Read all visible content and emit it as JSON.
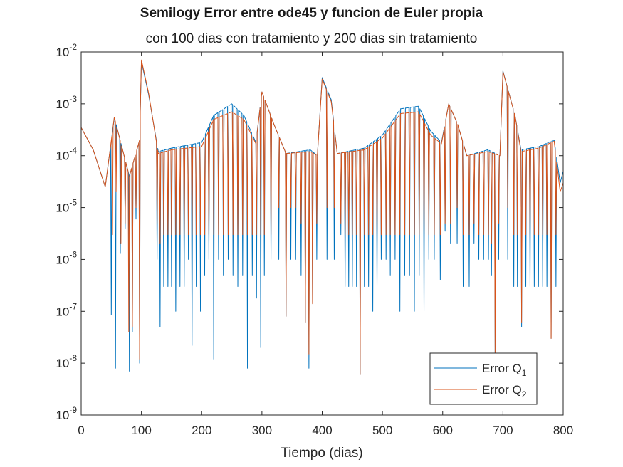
{
  "chart_data": {
    "type": "line",
    "title": "Semilogy Error entre ode45 y funcion de Euler propia",
    "subtitle": "con 100 dias con tratamiento y 200 dias sin tratamiento",
    "xlabel": "Tiempo (dias)",
    "ylabel": "",
    "yscale": "log",
    "xlim": [
      0,
      800
    ],
    "ylim": [
      1e-09,
      0.01
    ],
    "x_ticks": [
      "0",
      "100",
      "200",
      "300",
      "400",
      "500",
      "600",
      "700",
      "800"
    ],
    "y_ticks": [
      {
        "base": "10",
        "exp": "-9"
      },
      {
        "base": "10",
        "exp": "-8"
      },
      {
        "base": "10",
        "exp": "-7"
      },
      {
        "base": "10",
        "exp": "-6"
      },
      {
        "base": "10",
        "exp": "-5"
      },
      {
        "base": "10",
        "exp": "-4"
      },
      {
        "base": "10",
        "exp": "-3"
      },
      {
        "base": "10",
        "exp": "-2"
      }
    ],
    "grid": false,
    "legend_position": "bottom-right",
    "series": [
      {
        "name_base": "Error Q",
        "name_sub": "1",
        "color": "#0072BD",
        "envelope": [
          [
            0,
            0.00035
          ],
          [
            20,
            0.00013
          ],
          [
            40,
            2.5e-05
          ],
          [
            55,
            0.00055
          ],
          [
            80,
            4e-05
          ],
          [
            97,
            0.0002
          ],
          [
            100,
            0.0065
          ],
          [
            112,
            0.0015
          ],
          [
            128,
            0.00012
          ],
          [
            150,
            0.00014
          ],
          [
            200,
            0.00018
          ],
          [
            220,
            0.0006
          ],
          [
            250,
            0.001
          ],
          [
            270,
            0.0006
          ],
          [
            290,
            0.00018
          ],
          [
            300,
            0.0017
          ],
          [
            320,
            0.0004
          ],
          [
            340,
            0.00011
          ],
          [
            380,
            0.00013
          ],
          [
            392,
            0.0001
          ],
          [
            400,
            0.0032
          ],
          [
            415,
            0.0012
          ],
          [
            425,
            0.00011
          ],
          [
            470,
            0.00014
          ],
          [
            500,
            0.00025
          ],
          [
            530,
            0.0008
          ],
          [
            560,
            0.0009
          ],
          [
            580,
            0.0003
          ],
          [
            598,
            0.00018
          ],
          [
            610,
            0.001
          ],
          [
            625,
            0.0004
          ],
          [
            640,
            0.0001
          ],
          [
            675,
            0.00013
          ],
          [
            695,
            0.0001
          ],
          [
            700,
            0.0043
          ],
          [
            720,
            0.0006
          ],
          [
            730,
            0.00013
          ],
          [
            760,
            0.00015
          ],
          [
            785,
            0.0002
          ],
          [
            795,
            3e-05
          ],
          [
            800,
            5e-05
          ]
        ],
        "dips": [
          [
            50,
            8.5e-08
          ],
          [
            57,
            8e-09
          ],
          [
            65,
            1.3e-06
          ],
          [
            73,
            4e-06
          ],
          [
            80,
            7e-09
          ],
          [
            85,
            4e-08
          ],
          [
            91,
            6e-06
          ],
          [
            97,
            1e-08
          ],
          [
            126,
            1e-06
          ],
          [
            131,
            5e-08
          ],
          [
            137,
            3e-07
          ],
          [
            144,
            3e-07
          ],
          [
            150,
            3e-07
          ],
          [
            157,
            1e-07
          ],
          [
            164,
            3e-07
          ],
          [
            171,
            3e-07
          ],
          [
            178,
            1e-06
          ],
          [
            184,
            2.2e-08
          ],
          [
            191,
            3e-07
          ],
          [
            198,
            1e-07
          ],
          [
            205,
            5e-07
          ],
          [
            212,
            1e-06
          ],
          [
            220,
            1.2e-08
          ],
          [
            228,
            1e-06
          ],
          [
            236,
            5e-07
          ],
          [
            244,
            1e-06
          ],
          [
            252,
            5e-07
          ],
          [
            260,
            3e-07
          ],
          [
            268,
            5e-07
          ],
          [
            276,
            8e-09
          ],
          [
            284,
            5e-07
          ],
          [
            291,
            1.8e-07
          ],
          [
            298,
            2e-08
          ],
          [
            304,
            5e-07
          ],
          [
            315,
            1e-06
          ],
          [
            328,
            1e-06
          ],
          [
            340,
            8e-08
          ],
          [
            348,
            1e-06
          ],
          [
            356,
            1e-06
          ],
          [
            365,
            5e-07
          ],
          [
            372,
            6e-08
          ],
          [
            378,
            8e-09
          ],
          [
            384,
            1.4e-07
          ],
          [
            391,
            1e-06
          ],
          [
            408,
            1e-06
          ],
          [
            420,
            1e-06
          ],
          [
            431,
            3e-06
          ],
          [
            438,
            3e-07
          ],
          [
            444,
            3e-07
          ],
          [
            450,
            3e-07
          ],
          [
            457,
            3e-07
          ],
          [
            463,
            6e-09
          ],
          [
            470,
            3e-07
          ],
          [
            477,
            3e-07
          ],
          [
            484,
            1e-07
          ],
          [
            491,
            3e-07
          ],
          [
            498,
            1e-06
          ],
          [
            506,
            1e-06
          ],
          [
            513,
            5e-07
          ],
          [
            521,
            1e-06
          ],
          [
            529,
            1e-07
          ],
          [
            537,
            5e-07
          ],
          [
            545,
            5e-07
          ],
          [
            553,
            1e-07
          ],
          [
            561,
            5e-07
          ],
          [
            569,
            1e-07
          ],
          [
            577,
            1e-06
          ],
          [
            586,
            1e-06
          ],
          [
            596,
            4e-07
          ],
          [
            604,
            3.5e-06
          ],
          [
            613,
            2e-06
          ],
          [
            624,
            2e-06
          ],
          [
            634,
            3e-07
          ],
          [
            644,
            3e-07
          ],
          [
            652,
            2e-06
          ],
          [
            660,
            1e-06
          ],
          [
            668,
            1e-06
          ],
          [
            676,
            1e-06
          ],
          [
            681,
            5e-07
          ],
          [
            687,
            1.5e-08
          ],
          [
            693,
            1e-06
          ],
          [
            708,
            1e-06
          ],
          [
            718,
            3e-07
          ],
          [
            724,
            3e-07
          ],
          [
            731,
            5e-08
          ],
          [
            738,
            3e-07
          ],
          [
            745,
            3e-07
          ],
          [
            752,
            3e-07
          ],
          [
            759,
            3e-07
          ],
          [
            766,
            3e-07
          ],
          [
            773,
            3e-07
          ],
          [
            780,
            3e-08
          ],
          [
            788,
            3e-07
          ]
        ]
      },
      {
        "name_base": "Error Q",
        "name_sub": "2",
        "color": "#D95319",
        "envelope": [
          [
            0,
            0.00035
          ],
          [
            20,
            0.00013
          ],
          [
            40,
            2.5e-05
          ],
          [
            55,
            0.00055
          ],
          [
            80,
            4e-05
          ],
          [
            97,
            0.0002
          ],
          [
            100,
            0.007
          ],
          [
            112,
            0.0016
          ],
          [
            128,
            0.00011
          ],
          [
            150,
            0.00013
          ],
          [
            200,
            0.00015
          ],
          [
            220,
            0.0005
          ],
          [
            250,
            0.0007
          ],
          [
            270,
            0.0005
          ],
          [
            290,
            0.00017
          ],
          [
            300,
            0.0017
          ],
          [
            320,
            0.0004
          ],
          [
            340,
            0.00011
          ],
          [
            380,
            0.00012
          ],
          [
            392,
            0.0001
          ],
          [
            400,
            0.003
          ],
          [
            415,
            0.0011
          ],
          [
            425,
            0.00011
          ],
          [
            470,
            0.00013
          ],
          [
            500,
            0.00022
          ],
          [
            530,
            0.00065
          ],
          [
            560,
            0.0007
          ],
          [
            580,
            0.00025
          ],
          [
            598,
            0.00017
          ],
          [
            610,
            0.001
          ],
          [
            625,
            0.0004
          ],
          [
            640,
            0.0001
          ],
          [
            675,
            0.00012
          ],
          [
            695,
            0.0001
          ],
          [
            700,
            0.0042
          ],
          [
            720,
            0.0006
          ],
          [
            730,
            0.00012
          ],
          [
            760,
            0.00014
          ],
          [
            785,
            0.00019
          ],
          [
            795,
            2e-05
          ],
          [
            800,
            3e-05
          ]
        ],
        "dips": [
          [
            52,
            3e-06
          ],
          [
            58,
            2e-05
          ],
          [
            66,
            2e-06
          ],
          [
            73,
            5e-06
          ],
          [
            79,
            4e-08
          ],
          [
            85,
            5e-08
          ],
          [
            91,
            1e-05
          ],
          [
            97,
            1.2e-08
          ],
          [
            126,
            5e-06
          ],
          [
            131,
            2e-06
          ],
          [
            137,
            3e-06
          ],
          [
            144,
            3e-06
          ],
          [
            150,
            3e-06
          ],
          [
            157,
            3e-06
          ],
          [
            164,
            3e-06
          ],
          [
            171,
            3e-06
          ],
          [
            178,
            3e-06
          ],
          [
            184,
            3e-06
          ],
          [
            191,
            3e-06
          ],
          [
            198,
            3e-06
          ],
          [
            205,
            3e-06
          ],
          [
            212,
            3e-06
          ],
          [
            220,
            3e-06
          ],
          [
            228,
            3e-06
          ],
          [
            236,
            3e-06
          ],
          [
            244,
            3e-06
          ],
          [
            252,
            3e-06
          ],
          [
            260,
            3e-06
          ],
          [
            268,
            3e-06
          ],
          [
            276,
            3e-06
          ],
          [
            284,
            3e-06
          ],
          [
            291,
            3e-06
          ],
          [
            298,
            3e-06
          ],
          [
            304,
            3e-06
          ],
          [
            315,
            3e-06
          ],
          [
            328,
            1e-05
          ],
          [
            340,
            8e-08
          ],
          [
            348,
            1e-05
          ],
          [
            356,
            1e-05
          ],
          [
            365,
            5e-06
          ],
          [
            372,
            6e-08
          ],
          [
            378,
            1.5e-08
          ],
          [
            384,
            1.4e-07
          ],
          [
            391,
            5e-06
          ],
          [
            408,
            1e-05
          ],
          [
            420,
            1e-05
          ],
          [
            431,
            5e-06
          ],
          [
            438,
            3e-06
          ],
          [
            444,
            3e-06
          ],
          [
            450,
            3e-06
          ],
          [
            457,
            3e-06
          ],
          [
            463,
            6e-09
          ],
          [
            470,
            3e-06
          ],
          [
            477,
            3e-06
          ],
          [
            484,
            3e-06
          ],
          [
            491,
            3e-06
          ],
          [
            498,
            3e-06
          ],
          [
            506,
            3e-06
          ],
          [
            513,
            3e-06
          ],
          [
            521,
            3e-06
          ],
          [
            529,
            3e-06
          ],
          [
            537,
            3e-06
          ],
          [
            545,
            3e-06
          ],
          [
            553,
            3e-06
          ],
          [
            561,
            3e-06
          ],
          [
            569,
            3e-06
          ],
          [
            577,
            3e-06
          ],
          [
            586,
            3e-06
          ],
          [
            596,
            3e-06
          ],
          [
            604,
            5e-06
          ],
          [
            613,
            5e-06
          ],
          [
            624,
            1e-05
          ],
          [
            634,
            3e-06
          ],
          [
            644,
            3e-06
          ],
          [
            652,
            5e-06
          ],
          [
            660,
            3e-06
          ],
          [
            668,
            3e-06
          ],
          [
            676,
            3e-06
          ],
          [
            681,
            2e-06
          ],
          [
            687,
            1.5e-08
          ],
          [
            693,
            5e-06
          ],
          [
            708,
            1e-05
          ],
          [
            718,
            3e-06
          ],
          [
            724,
            3e-06
          ],
          [
            731,
            6e-08
          ],
          [
            738,
            3e-06
          ],
          [
            745,
            3e-06
          ],
          [
            752,
            3e-06
          ],
          [
            759,
            3e-06
          ],
          [
            766,
            3e-06
          ],
          [
            773,
            3e-06
          ],
          [
            780,
            3e-08
          ],
          [
            788,
            3e-06
          ]
        ]
      }
    ]
  }
}
